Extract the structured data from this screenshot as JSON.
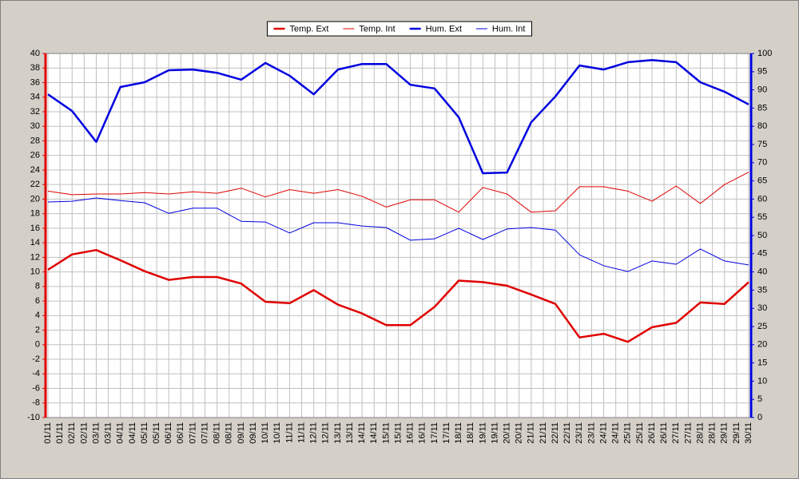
{
  "chart_data": {
    "type": "line",
    "x": [
      "01/11",
      "02/11",
      "03/11",
      "04/11",
      "05/11",
      "06/11",
      "07/11",
      "08/11",
      "09/11",
      "10/11",
      "11/11",
      "12/11",
      "13/11",
      "14/11",
      "15/11",
      "16/11",
      "17/11",
      "18/11",
      "19/11",
      "20/11",
      "21/11",
      "22/11",
      "23/11",
      "24/11",
      "25/11",
      "26/11",
      "27/11",
      "28/11",
      "29/11",
      "30/11"
    ],
    "xtick_labels": [
      "01/11",
      "01/11",
      "02/11",
      "02/11",
      "03/11",
      "03/11",
      "04/11",
      "04/11",
      "05/11",
      "05/11",
      "06/11",
      "06/11",
      "07/11",
      "07/11",
      "08/11",
      "08/11",
      "09/11",
      "09/11",
      "10/11",
      "10/11",
      "11/11",
      "11/11",
      "12/11",
      "12/11",
      "13/11",
      "13/11",
      "14/11",
      "14/11",
      "15/11",
      "15/11",
      "16/11",
      "16/11",
      "17/11",
      "17/11",
      "18/11",
      "18/11",
      "19/11",
      "19/11",
      "20/11",
      "20/11",
      "21/11",
      "21/11",
      "22/11",
      "22/11",
      "23/11",
      "23/11",
      "24/11",
      "24/11",
      "25/11",
      "25/11",
      "26/11",
      "26/11",
      "27/11",
      "27/11",
      "28/11",
      "28/11",
      "29/11",
      "29/11",
      "30/11"
    ],
    "series": [
      {
        "name": "Temp. Ext",
        "color": "#e00000",
        "width": 2.5,
        "axis": "y",
        "values": [
          10.3,
          12.4,
          13.0,
          11.6,
          10.1,
          8.9,
          9.3,
          9.3,
          8.4,
          5.9,
          5.7,
          7.5,
          5.5,
          4.3,
          2.7,
          2.7,
          5.2,
          8.8,
          8.6,
          8.1,
          6.9,
          5.6,
          1.0,
          1.5,
          0.4,
          2.4,
          3.0,
          5.8,
          5.6,
          8.6
        ]
      },
      {
        "name": "Temp. Int",
        "color": "#e00000",
        "width": 1,
        "axis": "y",
        "values": [
          21.1,
          20.6,
          20.7,
          20.7,
          20.9,
          20.7,
          21.0,
          20.8,
          21.5,
          20.3,
          21.3,
          20.8,
          21.3,
          20.4,
          18.9,
          19.9,
          19.9,
          18.2,
          21.6,
          20.7,
          18.2,
          18.4,
          21.7,
          21.7,
          21.1,
          19.7,
          21.8,
          19.4,
          22.0,
          23.7
        ]
      },
      {
        "name": "Hum. Ext",
        "color": "#0000e0",
        "width": 2.5,
        "axis": "y2",
        "values": [
          88.8,
          84.2,
          75.7,
          90.8,
          92.1,
          95.4,
          95.6,
          94.7,
          92.8,
          97.4,
          93.9,
          88.8,
          95.6,
          97.1,
          97.1,
          91.4,
          90.4,
          82.5,
          67.1,
          67.3,
          81.1,
          88.2,
          96.7,
          95.6,
          97.6,
          98.2,
          97.6,
          92.1,
          89.5,
          86.0
        ]
      },
      {
        "name": "Hum. Int",
        "color": "#0000e0",
        "width": 1,
        "axis": "y2",
        "values": [
          59.2,
          59.4,
          60.3,
          59.6,
          59.0,
          56.1,
          57.5,
          57.5,
          53.9,
          53.7,
          50.7,
          53.5,
          53.5,
          52.6,
          52.2,
          48.7,
          49.1,
          52.0,
          48.9,
          51.8,
          52.2,
          51.5,
          44.7,
          41.7,
          40.1,
          43.0,
          42.1,
          46.3,
          43.0,
          41.9
        ]
      }
    ],
    "ylim": [
      -10,
      40
    ],
    "yticks": [
      -10,
      -8,
      -6,
      -4,
      -2,
      0,
      2,
      4,
      6,
      8,
      10,
      12,
      14,
      16,
      18,
      20,
      22,
      24,
      26,
      28,
      30,
      32,
      34,
      36,
      38,
      40
    ],
    "y2lim": [
      0,
      100
    ],
    "y2ticks": [
      0,
      5,
      10,
      15,
      20,
      25,
      30,
      35,
      40,
      45,
      50,
      55,
      60,
      65,
      70,
      75,
      80,
      85,
      90,
      95,
      100
    ],
    "y_axis_color": "#e00000",
    "y2_axis_color": "#0000e0",
    "grid": true,
    "legend": "top"
  }
}
